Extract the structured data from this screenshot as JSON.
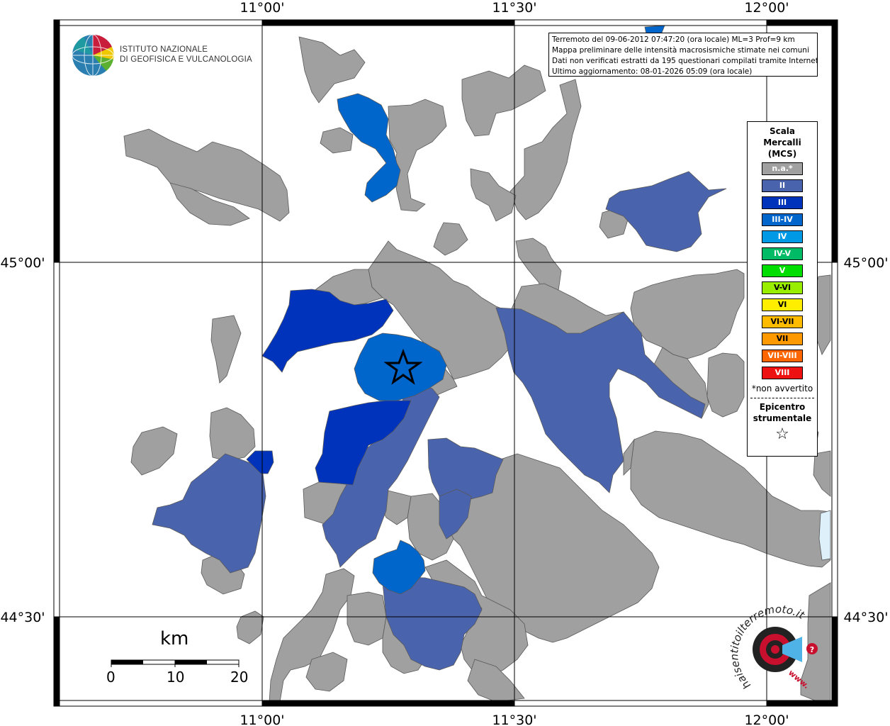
{
  "map": {
    "title_lines": [
      "Terremoto del 09-06-2012 07:47:20 (ora locale) ML=3 Prof=9 km",
      "Mappa preliminare delle intensità macrosismiche stimate nei comuni",
      "Dati non verificati estratti da 195 questionari compilati tramite Internet.",
      "Ultimo aggiornamento: 08-01-2026 05:09 (ora locale)"
    ],
    "longitude_labels": [
      "11°00'",
      "11°30'",
      "12°00'"
    ],
    "latitude_labels": [
      "45°00'",
      "44°30'"
    ]
  },
  "institute": {
    "name_line1": "ISTITUTO NAZIONALE",
    "name_line2": "DI GEOFISICA E VULCANOLOGIA"
  },
  "scale_bar": {
    "unit": "km",
    "ticks": [
      "0",
      "10",
      "20"
    ]
  },
  "legend": {
    "title_lines": [
      "Scala",
      "Mercalli",
      "(MCS)"
    ],
    "items": [
      {
        "label": "n.a.*",
        "color": "#a0a0a0"
      },
      {
        "label": "II",
        "color": "#4a63ad"
      },
      {
        "label": "III",
        "color": "#0033bb"
      },
      {
        "label": "III-IV",
        "color": "#0066cc"
      },
      {
        "label": "IV",
        "color": "#0099e6"
      },
      {
        "label": "IV-V",
        "color": "#00bb66"
      },
      {
        "label": "V",
        "color": "#00dd00"
      },
      {
        "label": "V-VI",
        "color": "#99ee00"
      },
      {
        "label": "VI",
        "color": "#ffee00"
      },
      {
        "label": "VI-VII",
        "color": "#ffbb00"
      },
      {
        "label": "VII",
        "color": "#ff9900"
      },
      {
        "label": "VII-VIII",
        "color": "#ff6600"
      },
      {
        "label": "VIII",
        "color": "#ee1111"
      }
    ],
    "note": "*non avvertito",
    "epicenter_lines": [
      "Epicentro",
      "strumentale"
    ],
    "epicenter_symbol": "☆"
  },
  "colors": {
    "not_felt": "#a0a0a0",
    "II": "#4a63ad",
    "III": "#0033bb",
    "III_IV": "#0066cc",
    "border": "#595959",
    "grid": "#000000",
    "water": "#def0fa"
  },
  "watermark": {
    "text": "haisentitoilterremoto.it",
    "url_text": "www."
  }
}
